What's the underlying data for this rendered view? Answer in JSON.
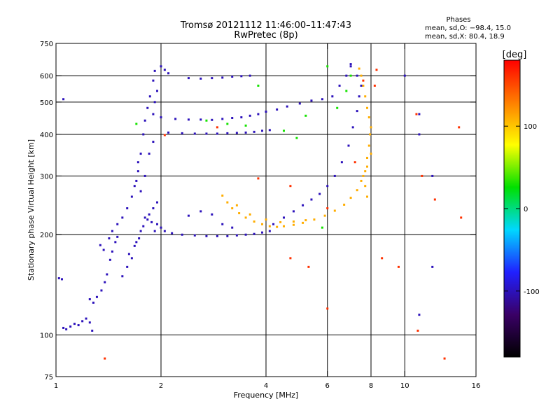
{
  "header": {
    "title_line1": "Tromsø 20121112 11:46:00–11:47:43",
    "title_line2": "RwPretec (8p)"
  },
  "stats": {
    "heading": "Phases",
    "line_o": "mean, sd,O: −98.4, 15.0",
    "line_x": "mean, sd,X: 80.4, 18.9"
  },
  "chart_data": {
    "type": "scatter",
    "title": "Tromsø 20121112 11:46:00–11:47:43",
    "subtitle": "RwPretec (8p)",
    "xlabel": "Frequency [MHz]",
    "ylabel": "Stationary phase Virtual Height [km]",
    "x_scale": "log",
    "y_scale": "log",
    "xlim": [
      1,
      16
    ],
    "ylim": [
      75,
      750
    ],
    "x_ticks": [
      1,
      2,
      4,
      6,
      8,
      10,
      16
    ],
    "y_ticks": [
      75,
      100,
      200,
      300,
      400,
      500,
      600,
      750
    ],
    "x_gridlines": [
      2,
      4,
      6,
      8,
      10
    ],
    "y_gridlines": [
      100,
      200,
      300,
      400,
      500,
      600
    ],
    "colorbar": {
      "label": "[deg]",
      "range": [
        -180,
        180
      ],
      "ticks": [
        -100,
        0,
        100
      ],
      "colormap": [
        "#000000",
        "#3a0066",
        "#2020ff",
        "#00d8ff",
        "#00e000",
        "#ffff00",
        "#ff7f00",
        "#ff0000"
      ]
    },
    "series": [
      {
        "color_value": -100,
        "points": [
          [
            1.02,
            148
          ],
          [
            1.04,
            147
          ],
          [
            1.05,
            105
          ],
          [
            1.07,
            104
          ],
          [
            1.1,
            106
          ],
          [
            1.13,
            108
          ],
          [
            1.16,
            107
          ],
          [
            1.19,
            110
          ],
          [
            1.22,
            112
          ],
          [
            1.25,
            109
          ],
          [
            1.27,
            103
          ],
          [
            1.25,
            128
          ],
          [
            1.28,
            125
          ],
          [
            1.31,
            130
          ],
          [
            1.35,
            136
          ],
          [
            1.38,
            144
          ],
          [
            1.4,
            152
          ],
          [
            1.43,
            168
          ],
          [
            1.45,
            178
          ],
          [
            1.48,
            190
          ],
          [
            1.5,
            197
          ],
          [
            1.34,
            186
          ],
          [
            1.37,
            180
          ],
          [
            1.42,
            195
          ],
          [
            1.45,
            205
          ],
          [
            1.5,
            215
          ],
          [
            1.55,
            225
          ],
          [
            1.6,
            240
          ],
          [
            1.65,
            260
          ],
          [
            1.68,
            280
          ],
          [
            1.72,
            310
          ],
          [
            1.75,
            350
          ],
          [
            1.78,
            400
          ],
          [
            1.8,
            440
          ],
          [
            1.83,
            480
          ],
          [
            1.86,
            520
          ],
          [
            1.55,
            150
          ],
          [
            1.6,
            160
          ],
          [
            1.65,
            170
          ],
          [
            1.7,
            190
          ],
          [
            1.75,
            205
          ],
          [
            1.8,
            225
          ],
          [
            1.85,
            230
          ],
          [
            1.9,
            240
          ],
          [
            1.95,
            250
          ],
          [
            1.62,
            175
          ],
          [
            1.68,
            185
          ],
          [
            1.73,
            195
          ],
          [
            1.78,
            212
          ],
          [
            1.83,
            222
          ],
          [
            1.88,
            218
          ],
          [
            1.92,
            205
          ],
          [
            1.95,
            215
          ],
          [
            2.0,
            210
          ],
          [
            2.05,
            205
          ],
          [
            2.15,
            202
          ],
          [
            2.3,
            200
          ],
          [
            2.5,
            199
          ],
          [
            2.7,
            198
          ],
          [
            2.9,
            198
          ],
          [
            3.1,
            198
          ],
          [
            3.3,
            199
          ],
          [
            3.5,
            200
          ],
          [
            3.7,
            201
          ],
          [
            3.9,
            203
          ],
          [
            4.1,
            205
          ],
          [
            2.1,
            405
          ],
          [
            2.3,
            403
          ],
          [
            2.5,
            402
          ],
          [
            2.7,
            402
          ],
          [
            2.9,
            402
          ],
          [
            3.1,
            403
          ],
          [
            3.3,
            404
          ],
          [
            3.5,
            405
          ],
          [
            3.7,
            407
          ],
          [
            3.9,
            410
          ],
          [
            4.1,
            412
          ],
          [
            2.0,
            450
          ],
          [
            2.2,
            445
          ],
          [
            2.4,
            443
          ],
          [
            2.6,
            443
          ],
          [
            2.8,
            442
          ],
          [
            3.0,
            445
          ],
          [
            3.2,
            448
          ],
          [
            3.4,
            450
          ],
          [
            3.6,
            455
          ],
          [
            3.8,
            460
          ],
          [
            4.0,
            468
          ],
          [
            4.3,
            475
          ],
          [
            4.6,
            485
          ],
          [
            5.0,
            495
          ],
          [
            5.4,
            505
          ],
          [
            5.8,
            510
          ],
          [
            1.9,
            460
          ],
          [
            1.92,
            500
          ],
          [
            1.95,
            540
          ],
          [
            1.9,
            580
          ],
          [
            1.92,
            620
          ],
          [
            2.0,
            640
          ],
          [
            2.05,
            625
          ],
          [
            2.1,
            610
          ],
          [
            2.4,
            590
          ],
          [
            2.6,
            588
          ],
          [
            2.8,
            590
          ],
          [
            3.0,
            592
          ],
          [
            3.2,
            596
          ],
          [
            3.4,
            598
          ],
          [
            3.6,
            600
          ],
          [
            4.2,
            215
          ],
          [
            4.5,
            225
          ],
          [
            4.8,
            235
          ],
          [
            5.1,
            245
          ],
          [
            5.4,
            255
          ],
          [
            5.7,
            265
          ],
          [
            6.0,
            280
          ],
          [
            6.3,
            300
          ],
          [
            6.6,
            330
          ],
          [
            6.9,
            370
          ],
          [
            7.1,
            420
          ],
          [
            7.3,
            470
          ],
          [
            7.4,
            520
          ],
          [
            7.5,
            560
          ],
          [
            7.3,
            600
          ],
          [
            7.0,
            640
          ],
          [
            6.2,
            520
          ],
          [
            6.5,
            560
          ],
          [
            6.8,
            600
          ],
          [
            7.0,
            650
          ],
          [
            1.05,
            510
          ],
          [
            1.9,
            380
          ],
          [
            1.85,
            350
          ],
          [
            1.8,
            300
          ],
          [
            1.75,
            270
          ],
          [
            1.7,
            290
          ],
          [
            1.72,
            330
          ],
          [
            2.8,
            230
          ],
          [
            3.0,
            215
          ],
          [
            3.2,
            210
          ],
          [
            2.6,
            235
          ],
          [
            2.4,
            228
          ],
          [
            10.0,
            600
          ],
          [
            11.0,
            460
          ],
          [
            11.0,
            400
          ],
          [
            12.0,
            160
          ],
          [
            11.0,
            115
          ],
          [
            12.0,
            300
          ]
        ]
      },
      {
        "color_value": 110,
        "points": [
          [
            3.0,
            262
          ],
          [
            3.1,
            250
          ],
          [
            3.2,
            240
          ],
          [
            3.35,
            232
          ],
          [
            3.5,
            225
          ],
          [
            3.7,
            219
          ],
          [
            3.9,
            215
          ],
          [
            4.1,
            212
          ],
          [
            4.3,
            211
          ],
          [
            4.5,
            212
          ],
          [
            4.8,
            214
          ],
          [
            5.1,
            217
          ],
          [
            5.5,
            222
          ],
          [
            5.9,
            228
          ],
          [
            6.3,
            236
          ],
          [
            6.7,
            246
          ],
          [
            7.0,
            258
          ],
          [
            7.3,
            272
          ],
          [
            7.5,
            290
          ],
          [
            7.7,
            310
          ],
          [
            7.8,
            340
          ],
          [
            7.9,
            370
          ],
          [
            7.95,
            400
          ],
          [
            8.0,
            420
          ],
          [
            7.9,
            450
          ],
          [
            7.8,
            480
          ],
          [
            7.7,
            520
          ],
          [
            7.6,
            560
          ],
          [
            7.5,
            600
          ],
          [
            7.4,
            630
          ],
          [
            3.3,
            245
          ],
          [
            3.6,
            230
          ],
          [
            4.0,
            222
          ],
          [
            4.4,
            218
          ],
          [
            4.8,
            219
          ],
          [
            5.2,
            221
          ],
          [
            7.6,
            300
          ],
          [
            7.8,
            320
          ],
          [
            8.0,
            350
          ],
          [
            7.7,
            280
          ],
          [
            7.8,
            260
          ]
        ]
      },
      {
        "color_value": 160,
        "points": [
          [
            1.38,
            85
          ],
          [
            2.05,
            398
          ],
          [
            2.9,
            420
          ],
          [
            3.8,
            295
          ],
          [
            4.7,
            280
          ],
          [
            6.0,
            240
          ],
          [
            7.2,
            330
          ],
          [
            7.6,
            580
          ],
          [
            8.3,
            625
          ],
          [
            8.6,
            170
          ],
          [
            9.6,
            160
          ],
          [
            10.8,
            460
          ],
          [
            11.2,
            300
          ],
          [
            12.2,
            255
          ],
          [
            13.0,
            85
          ],
          [
            14.3,
            420
          ],
          [
            14.5,
            225
          ],
          [
            4.7,
            170
          ],
          [
            5.3,
            160
          ],
          [
            6.0,
            120
          ],
          [
            10.9,
            103
          ],
          [
            8.2,
            560
          ]
        ]
      },
      {
        "color_value": 30,
        "points": [
          [
            2.7,
            440
          ],
          [
            3.1,
            430
          ],
          [
            3.5,
            425
          ],
          [
            4.5,
            410
          ],
          [
            5.2,
            455
          ],
          [
            6.4,
            480
          ],
          [
            6.8,
            540
          ],
          [
            7.0,
            600
          ],
          [
            3.8,
            560
          ],
          [
            4.9,
            390
          ],
          [
            5.8,
            210
          ],
          [
            6.0,
            640
          ],
          [
            1.7,
            430
          ]
        ]
      }
    ]
  }
}
